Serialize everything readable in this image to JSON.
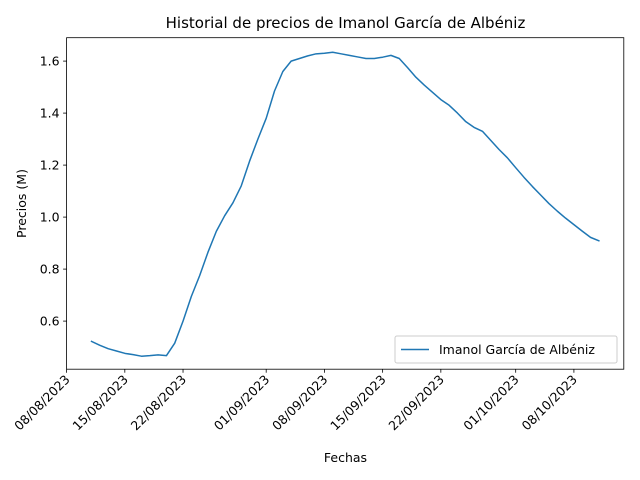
{
  "chart_data": {
    "type": "line",
    "title": "Historial de precios de Imanol García de Albéniz",
    "xlabel": "Fechas",
    "ylabel": "Precios (M)",
    "x_tick_labels": [
      "08/08/2023",
      "15/08/2023",
      "22/08/2023",
      "01/09/2023",
      "08/09/2023",
      "15/09/2023",
      "22/09/2023",
      "01/10/2023",
      "08/10/2023"
    ],
    "y_tick_labels": [
      "0.6",
      "0.8",
      "1.0",
      "1.2",
      "1.4",
      "1.6"
    ],
    "y_ticks": [
      0.6,
      0.8,
      1.0,
      1.2,
      1.4,
      1.6
    ],
    "xlim": [
      "2023-08-08",
      "2023-10-14"
    ],
    "ylim": [
      0.415,
      1.69
    ],
    "grid": false,
    "legend_position": "lower right",
    "series": [
      {
        "name": "Imanol García de Albéniz",
        "color": "#1f77b4",
        "x": [
          "2023-08-11",
          "2023-08-12",
          "2023-08-13",
          "2023-08-14",
          "2023-08-15",
          "2023-08-16",
          "2023-08-17",
          "2023-08-18",
          "2023-08-19",
          "2023-08-20",
          "2023-08-21",
          "2023-08-22",
          "2023-08-23",
          "2023-08-24",
          "2023-08-25",
          "2023-08-26",
          "2023-08-27",
          "2023-08-28",
          "2023-08-29",
          "2023-08-30",
          "2023-08-31",
          "2023-09-01",
          "2023-09-02",
          "2023-09-03",
          "2023-09-04",
          "2023-09-05",
          "2023-09-06",
          "2023-09-07",
          "2023-09-08",
          "2023-09-09",
          "2023-09-10",
          "2023-09-11",
          "2023-09-12",
          "2023-09-13",
          "2023-09-14",
          "2023-09-15",
          "2023-09-16",
          "2023-09-17",
          "2023-09-18",
          "2023-09-19",
          "2023-09-20",
          "2023-09-21",
          "2023-09-22",
          "2023-09-23",
          "2023-09-24",
          "2023-09-25",
          "2023-09-26",
          "2023-09-27",
          "2023-09-28",
          "2023-09-29",
          "2023-09-30",
          "2023-10-01",
          "2023-10-02",
          "2023-10-03",
          "2023-10-04",
          "2023-10-05",
          "2023-10-06",
          "2023-10-07",
          "2023-10-08",
          "2023-10-09",
          "2023-10-10",
          "2023-10-11"
        ],
        "y": [
          0.522,
          0.507,
          0.494,
          0.485,
          0.476,
          0.471,
          0.465,
          0.467,
          0.47,
          0.467,
          0.515,
          0.6,
          0.695,
          0.775,
          0.865,
          0.945,
          1.005,
          1.055,
          1.12,
          1.215,
          1.3,
          1.38,
          1.485,
          1.56,
          1.6,
          1.61,
          1.62,
          1.628,
          1.63,
          1.634,
          1.628,
          1.622,
          1.616,
          1.61,
          1.61,
          1.615,
          1.622,
          1.61,
          1.575,
          1.538,
          1.508,
          1.48,
          1.452,
          1.43,
          1.4,
          1.367,
          1.345,
          1.33,
          1.295,
          1.26,
          1.228,
          1.19,
          1.153,
          1.118,
          1.085,
          1.052,
          1.023,
          0.996,
          0.971,
          0.946,
          0.922,
          0.909
        ]
      }
    ]
  }
}
